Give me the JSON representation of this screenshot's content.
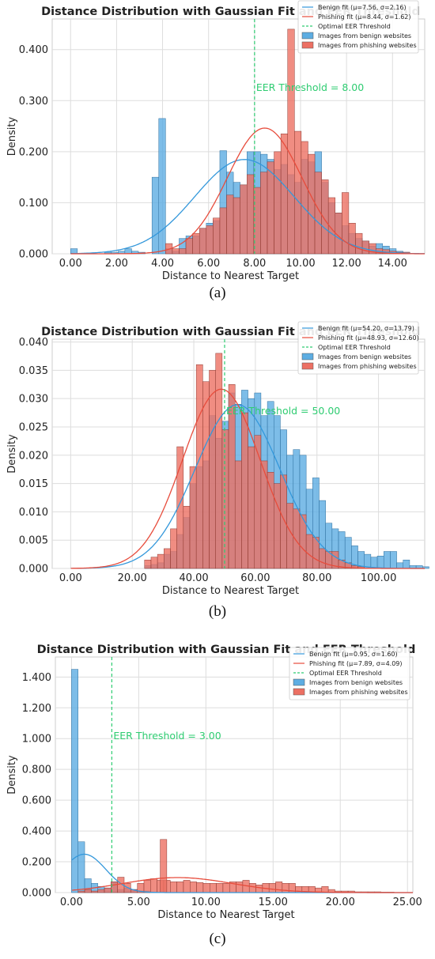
{
  "colors": {
    "benign": "#3498db",
    "phishing": "#e74c3c",
    "threshold": "#2ecc71",
    "benign_fill": "#5dade2",
    "phishing_fill": "#ec7063",
    "grid": "#dddddd"
  },
  "chart_data": [
    {
      "type": "bar",
      "title": "Distance Distribution with Gaussian Fit and EER Threshold",
      "xlabel": "Distance to Nearest Target",
      "ylabel": "Density",
      "caption": "(a)",
      "xlim": [
        -0.8,
        15.4
      ],
      "ylim": [
        0,
        0.46
      ],
      "xticks": [
        0,
        2,
        4,
        6,
        8,
        10,
        12,
        14
      ],
      "xtick_labels": [
        "0.00",
        "2.00",
        "4.00",
        "6.00",
        "8.00",
        "10.00",
        "12.00",
        "14.00"
      ],
      "yticks": [
        0,
        0.1,
        0.2,
        0.3,
        0.4
      ],
      "ytick_labels": [
        "0.000",
        "0.100",
        "0.200",
        "0.300",
        "0.400"
      ],
      "grid": true,
      "legend_position": "top-right",
      "threshold": 8.0,
      "threshold_label": "EER Threshold = 8.00",
      "benign_fit": {
        "mu": 7.56,
        "sigma": 2.16,
        "label": "Benign fit (μ=7.56, σ=2.16)"
      },
      "phishing_fit": {
        "mu": 8.44,
        "sigma": 1.62,
        "label": "Phishing fit (μ=8.44, σ=1.62)"
      },
      "threshold_legend": "Optimal EER Threshold",
      "series": [
        {
          "name": "Images from benign websites",
          "bin_start": 0,
          "bin_width": 0.295,
          "values": [
            0.01,
            0,
            0,
            0,
            0,
            0.003,
            0.003,
            0.005,
            0.01,
            0.005,
            0.003,
            0,
            0.15,
            0.265,
            0.01,
            0.005,
            0.03,
            0.035,
            0.035,
            0.05,
            0.06,
            0.065,
            0.202,
            0.16,
            0.14,
            0.135,
            0.2,
            0.2,
            0.195,
            0.185,
            0.165,
            0.175,
            0.155,
            0.14,
            0.185,
            0.18,
            0.2,
            0.14,
            0.1,
            0.08,
            0.055,
            0.04,
            0.03,
            0.025,
            0.015,
            0.02,
            0.015,
            0.01,
            0.005,
            0.003
          ]
        },
        {
          "name": "Images from phishing websites",
          "bin_start": 0,
          "bin_width": 0.295,
          "values": [
            0,
            0,
            0,
            0,
            0,
            0,
            0,
            0,
            0,
            0,
            0,
            0,
            0,
            0,
            0.02,
            0.01,
            0.01,
            0.03,
            0.04,
            0.05,
            0.055,
            0.07,
            0.09,
            0.115,
            0.11,
            0.135,
            0.155,
            0.13,
            0.16,
            0.18,
            0.2,
            0.235,
            0.44,
            0.24,
            0.22,
            0.195,
            0.16,
            0.145,
            0.11,
            0.08,
            0.12,
            0.06,
            0.04,
            0.025,
            0.02,
            0.01,
            0.008,
            0.005,
            0.003,
            0.003
          ]
        }
      ]
    },
    {
      "type": "bar",
      "title": "Distance Distribution with Gaussian Fit and EER Threshold",
      "xlabel": "Distance to Nearest Target",
      "ylabel": "Density",
      "caption": "(b)",
      "xlim": [
        -6,
        115
      ],
      "ylim": [
        0,
        0.0405
      ],
      "xticks": [
        0,
        20,
        40,
        60,
        80,
        100
      ],
      "xtick_labels": [
        "0.00",
        "20.00",
        "40.00",
        "60.00",
        "80.00",
        "100.00"
      ],
      "yticks": [
        0,
        0.005,
        0.01,
        0.015,
        0.02,
        0.025,
        0.03,
        0.035,
        0.04
      ],
      "ytick_labels": [
        "0.000",
        "0.005",
        "0.010",
        "0.015",
        "0.020",
        "0.025",
        "0.030",
        "0.035",
        "0.040"
      ],
      "grid": true,
      "legend_position": "top-right",
      "threshold": 50.0,
      "threshold_label": "EER Threshold = 50.00",
      "benign_fit": {
        "mu": 54.2,
        "sigma": 13.79,
        "label": "Benign fit (μ=54.20, σ=13.79)"
      },
      "phishing_fit": {
        "mu": 48.93,
        "sigma": 12.6,
        "label": "Phishing fit (μ=48.93, σ=12.60)"
      },
      "threshold_legend": "Optimal EER Threshold",
      "series": [
        {
          "name": "Images from benign websites",
          "bin_start": 24,
          "bin_width": 2.1,
          "values": [
            0.0005,
            0.0007,
            0.001,
            0.0025,
            0.003,
            0.006,
            0.009,
            0.015,
            0.018,
            0.019,
            0.027,
            0.023,
            0.026,
            0.031,
            0.029,
            0.0315,
            0.03,
            0.031,
            0.027,
            0.0295,
            0.027,
            0.0245,
            0.02,
            0.021,
            0.02,
            0.014,
            0.016,
            0.012,
            0.008,
            0.007,
            0.0065,
            0.0055,
            0.004,
            0.003,
            0.0025,
            0.002,
            0.0022,
            0.003,
            0.003,
            0.001,
            0.0015,
            0.0005,
            0.0005,
            0.0003
          ]
        },
        {
          "name": "Images from phishing websites",
          "bin_start": 24,
          "bin_width": 2.1,
          "values": [
            0.0015,
            0.002,
            0.0025,
            0.0035,
            0.007,
            0.0215,
            0.011,
            0.018,
            0.036,
            0.033,
            0.035,
            0.038,
            0.0245,
            0.0325,
            0.019,
            0.0275,
            0.0215,
            0.0235,
            0.019,
            0.017,
            0.015,
            0.0165,
            0.0115,
            0.0105,
            0.0095,
            0.006,
            0.0055,
            0.0035,
            0.003,
            0.003,
            0.0015,
            0.001,
            0.0005,
            0.0003,
            0,
            0,
            0,
            0,
            0,
            0,
            0,
            0,
            0,
            0
          ]
        }
      ]
    },
    {
      "type": "bar",
      "title": "Distance Distribution with Gaussian Fit and EER Threshold",
      "xlabel": "Distance to Nearest Target",
      "ylabel": "Density",
      "caption": "(c)",
      "xlim": [
        -1.2,
        25.4
      ],
      "ylim": [
        0,
        1.53
      ],
      "xticks": [
        0,
        5,
        10,
        15,
        20,
        25
      ],
      "xtick_labels": [
        "0.00",
        "5.00",
        "10.00",
        "15.00",
        "20.00",
        "25.00"
      ],
      "yticks": [
        0,
        0.2,
        0.4,
        0.6,
        0.8,
        1.0,
        1.2,
        1.4
      ],
      "ytick_labels": [
        "0.000",
        "0.200",
        "0.400",
        "0.600",
        "0.800",
        "1.000",
        "1.200",
        "1.400"
      ],
      "grid": true,
      "legend_position": "top-right",
      "threshold": 3.0,
      "threshold_label": "EER Threshold = 3.00",
      "benign_fit": {
        "mu": 0.95,
        "sigma": 1.6,
        "label": "Benign fit (μ=0.95, σ=1.60)"
      },
      "phishing_fit": {
        "mu": 7.89,
        "sigma": 4.09,
        "label": "Phishing fit (μ=7.89, σ=4.09)"
      },
      "threshold_legend": "Optimal EER Threshold",
      "series": [
        {
          "name": "Images from benign websites",
          "bin_start": 0,
          "bin_width": 0.49,
          "values": [
            1.45,
            0.33,
            0.09,
            0.06,
            0.04,
            0.03,
            0.07,
            0.02,
            0.03,
            0.02,
            0.01,
            0.01
          ]
        },
        {
          "name": "Images from phishing websites",
          "bin_start": 0,
          "bin_width": 0.49,
          "values": [
            0,
            0.01,
            0.02,
            0.01,
            0.02,
            0.03,
            0.07,
            0.1,
            0.06,
            0.02,
            0.06,
            0.08,
            0.09,
            0.08,
            0.08,
            0.07,
            0.07,
            0.08,
            0.07,
            0.065,
            0.06,
            0.06,
            0.06,
            0.06,
            0.07,
            0.07,
            0.08,
            0.06,
            0.05,
            0.06,
            0.06,
            0.07,
            0.06,
            0.06,
            0.04,
            0.04,
            0.04,
            0.03,
            0.04,
            0.02,
            0.01,
            0.01,
            0.01,
            0.005,
            0.005,
            0.005,
            0.005,
            0.003,
            0.003
          ]
        }
      ],
      "spike": {
        "x": 6.6,
        "value": 0.345
      }
    }
  ]
}
